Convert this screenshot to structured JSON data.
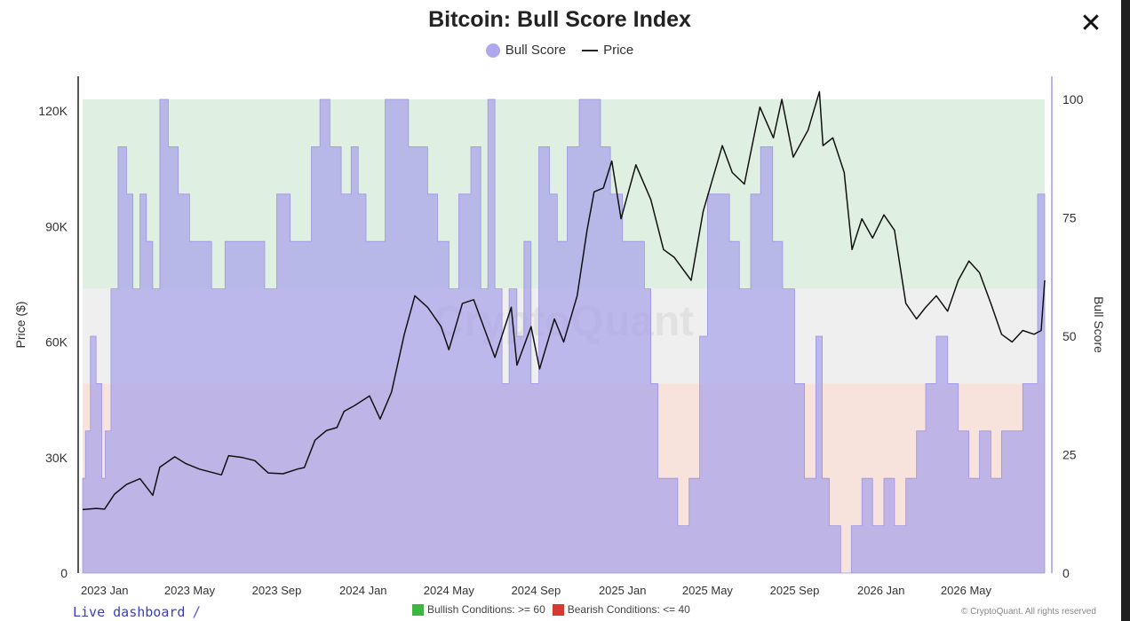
{
  "header": {
    "title": "Bitcoin: Bull Score Index",
    "close_icon": "close-icon"
  },
  "legend": {
    "bull_label": "Bull Score",
    "price_label": "Price"
  },
  "colors": {
    "bull_fill": "#a9a2ea",
    "bull_legend": "#b0a8ee",
    "price_line": "#111111",
    "bullish_zone": "#dff0e3",
    "neutral_zone": "#efefef",
    "bearish_zone": "#f7e3dc",
    "bullish_square": "#3fb63f",
    "bearish_square": "#d43a2e"
  },
  "footer": {
    "live_dashboard": "Live dashboard",
    "bullish_conditions": "Bullish Conditions: >= 60",
    "bearish_conditions": "Bearish Conditions: <= 40",
    "copyright": "© CryptoQuant. All rights reserved"
  },
  "watermark": "CryptoQuant",
  "chart_data": {
    "type": "area",
    "title": "Bitcoin: Bull Score Index",
    "ylabel_left": "Price ($)",
    "ylabel_right": "Bull Score",
    "x_tick_labels": [
      "2023 Jan",
      "2023 May",
      "2023 Sep",
      "2024 Jan",
      "2024 May",
      "2024 Sep",
      "2025 Jan",
      "2025 May",
      "2025 Sep",
      "2026 Jan",
      "2026 May"
    ],
    "y_left_ticks": [
      "0",
      "30K",
      "60K",
      "90K",
      "120K"
    ],
    "y_left_tick_values": [
      0,
      30000,
      60000,
      90000,
      120000
    ],
    "y_right_ticks": [
      "0",
      "25",
      "50",
      "75",
      "100"
    ],
    "y_right_tick_values": [
      0,
      25,
      50,
      75,
      100
    ],
    "ylim_left": [
      0,
      123000
    ],
    "ylim_right": [
      0,
      100
    ],
    "xlim": [
      "2022-12-01",
      "2026-08-20"
    ],
    "zones": [
      {
        "name": "Bullish Conditions",
        "from": 60,
        "to": 100
      },
      {
        "name": "Neutral",
        "from": 40,
        "to": 60
      },
      {
        "name": "Bearish Conditions",
        "from": 0,
        "to": 40
      }
    ],
    "legend_position": "top",
    "grid": false,
    "series": [
      {
        "name": "Bull Score",
        "axis": "right",
        "points": [
          [
            "2022-12-01",
            20
          ],
          [
            "2022-12-05",
            30
          ],
          [
            "2022-12-12",
            50
          ],
          [
            "2022-12-20",
            40
          ],
          [
            "2022-12-28",
            20
          ],
          [
            "2023-01-02",
            30
          ],
          [
            "2023-01-10",
            60
          ],
          [
            "2023-01-20",
            90
          ],
          [
            "2023-02-01",
            80
          ],
          [
            "2023-02-10",
            60
          ],
          [
            "2023-02-20",
            80
          ],
          [
            "2023-03-01",
            70
          ],
          [
            "2023-03-10",
            60
          ],
          [
            "2023-03-20",
            100
          ],
          [
            "2023-04-01",
            90
          ],
          [
            "2023-04-15",
            80
          ],
          [
            "2023-05-01",
            70
          ],
          [
            "2023-05-15",
            70
          ],
          [
            "2023-06-01",
            60
          ],
          [
            "2023-06-20",
            70
          ],
          [
            "2023-07-10",
            70
          ],
          [
            "2023-08-01",
            70
          ],
          [
            "2023-08-15",
            60
          ],
          [
            "2023-09-01",
            80
          ],
          [
            "2023-09-20",
            70
          ],
          [
            "2023-10-01",
            70
          ],
          [
            "2023-10-20",
            90
          ],
          [
            "2023-11-01",
            100
          ],
          [
            "2023-11-15",
            90
          ],
          [
            "2023-12-01",
            80
          ],
          [
            "2023-12-15",
            90
          ],
          [
            "2023-12-25",
            80
          ],
          [
            "2024-01-05",
            70
          ],
          [
            "2024-01-20",
            70
          ],
          [
            "2024-02-01",
            100
          ],
          [
            "2024-02-20",
            100
          ],
          [
            "2024-03-05",
            90
          ],
          [
            "2024-03-20",
            90
          ],
          [
            "2024-04-01",
            80
          ],
          [
            "2024-04-15",
            70
          ],
          [
            "2024-05-01",
            60
          ],
          [
            "2024-05-15",
            80
          ],
          [
            "2024-06-01",
            90
          ],
          [
            "2024-06-15",
            60
          ],
          [
            "2024-06-25",
            100
          ],
          [
            "2024-07-05",
            60
          ],
          [
            "2024-07-15",
            40
          ],
          [
            "2024-07-25",
            60
          ],
          [
            "2024-08-05",
            50
          ],
          [
            "2024-08-15",
            70
          ],
          [
            "2024-08-25",
            40
          ],
          [
            "2024-09-05",
            90
          ],
          [
            "2024-09-20",
            80
          ],
          [
            "2024-10-01",
            70
          ],
          [
            "2024-10-15",
            90
          ],
          [
            "2024-11-01",
            100
          ],
          [
            "2024-11-20",
            100
          ],
          [
            "2024-12-01",
            90
          ],
          [
            "2024-12-15",
            80
          ],
          [
            "2025-01-01",
            70
          ],
          [
            "2025-01-20",
            70
          ],
          [
            "2025-02-01",
            60
          ],
          [
            "2025-02-10",
            40
          ],
          [
            "2025-02-20",
            20
          ],
          [
            "2025-03-05",
            20
          ],
          [
            "2025-03-20",
            10
          ],
          [
            "2025-04-05",
            20
          ],
          [
            "2025-04-20",
            50
          ],
          [
            "2025-05-01",
            80
          ],
          [
            "2025-05-20",
            80
          ],
          [
            "2025-06-01",
            70
          ],
          [
            "2025-06-15",
            60
          ],
          [
            "2025-07-01",
            80
          ],
          [
            "2025-07-15",
            90
          ],
          [
            "2025-08-01",
            70
          ],
          [
            "2025-08-15",
            60
          ],
          [
            "2025-09-01",
            40
          ],
          [
            "2025-09-15",
            20
          ],
          [
            "2025-10-01",
            50
          ],
          [
            "2025-10-10",
            20
          ],
          [
            "2025-10-20",
            10
          ],
          [
            "2025-11-05",
            0
          ],
          [
            "2025-11-20",
            10
          ],
          [
            "2025-12-05",
            20
          ],
          [
            "2025-12-20",
            10
          ],
          [
            "2026-01-05",
            20
          ],
          [
            "2026-01-20",
            10
          ],
          [
            "2026-02-05",
            20
          ],
          [
            "2026-02-20",
            30
          ],
          [
            "2026-03-05",
            40
          ],
          [
            "2026-03-20",
            50
          ],
          [
            "2026-04-05",
            40
          ],
          [
            "2026-04-20",
            30
          ],
          [
            "2026-05-05",
            20
          ],
          [
            "2026-05-20",
            30
          ],
          [
            "2026-06-05",
            20
          ],
          [
            "2026-06-20",
            30
          ],
          [
            "2026-07-05",
            30
          ],
          [
            "2026-07-20",
            40
          ],
          [
            "2026-08-10",
            80
          ],
          [
            "2026-08-20",
            80
          ]
        ]
      },
      {
        "name": "Price",
        "axis": "left",
        "points": [
          [
            "2022-12-01",
            16500
          ],
          [
            "2022-12-20",
            16800
          ],
          [
            "2023-01-01",
            16600
          ],
          [
            "2023-01-15",
            20500
          ],
          [
            "2023-02-01",
            23000
          ],
          [
            "2023-02-20",
            24500
          ],
          [
            "2023-03-10",
            20200
          ],
          [
            "2023-03-20",
            27500
          ],
          [
            "2023-04-10",
            30200
          ],
          [
            "2023-04-25",
            28500
          ],
          [
            "2023-05-15",
            27000
          ],
          [
            "2023-06-15",
            25500
          ],
          [
            "2023-06-25",
            30500
          ],
          [
            "2023-07-15",
            30000
          ],
          [
            "2023-08-01",
            29200
          ],
          [
            "2023-08-20",
            26000
          ],
          [
            "2023-09-10",
            25800
          ],
          [
            "2023-09-30",
            27000
          ],
          [
            "2023-10-10",
            27400
          ],
          [
            "2023-10-25",
            34500
          ],
          [
            "2023-11-10",
            37000
          ],
          [
            "2023-11-25",
            37800
          ],
          [
            "2023-12-05",
            42000
          ],
          [
            "2023-12-20",
            43500
          ],
          [
            "2024-01-10",
            46000
          ],
          [
            "2024-01-25",
            40000
          ],
          [
            "2024-02-10",
            47000
          ],
          [
            "2024-02-28",
            62000
          ],
          [
            "2024-03-14",
            72000
          ],
          [
            "2024-04-01",
            69000
          ],
          [
            "2024-04-20",
            64000
          ],
          [
            "2024-05-01",
            58000
          ],
          [
            "2024-05-20",
            70000
          ],
          [
            "2024-06-05",
            71000
          ],
          [
            "2024-06-25",
            61000
          ],
          [
            "2024-07-05",
            56000
          ],
          [
            "2024-07-28",
            69000
          ],
          [
            "2024-08-05",
            54000
          ],
          [
            "2024-08-25",
            64000
          ],
          [
            "2024-09-06",
            53000
          ],
          [
            "2024-09-27",
            66000
          ],
          [
            "2024-10-10",
            60000
          ],
          [
            "2024-10-29",
            72000
          ],
          [
            "2024-11-12",
            89000
          ],
          [
            "2024-11-22",
            99000
          ],
          [
            "2024-12-05",
            100000
          ],
          [
            "2024-12-17",
            107000
          ],
          [
            "2024-12-30",
            92000
          ],
          [
            "2025-01-20",
            106000
          ],
          [
            "2025-02-10",
            97000
          ],
          [
            "2025-02-28",
            84000
          ],
          [
            "2025-03-15",
            82000
          ],
          [
            "2025-04-08",
            76000
          ],
          [
            "2025-04-25",
            94000
          ],
          [
            "2025-05-22",
            111000
          ],
          [
            "2025-06-05",
            104000
          ],
          [
            "2025-06-22",
            101000
          ],
          [
            "2025-07-14",
            121000
          ],
          [
            "2025-08-02",
            113000
          ],
          [
            "2025-08-14",
            123000
          ],
          [
            "2025-08-30",
            108000
          ],
          [
            "2025-09-20",
            115000
          ],
          [
            "2025-10-06",
            125000
          ],
          [
            "2025-10-11",
            111000
          ],
          [
            "2025-10-25",
            113000
          ],
          [
            "2025-11-10",
            104000
          ],
          [
            "2025-11-21",
            84000
          ],
          [
            "2025-12-05",
            92000
          ],
          [
            "2025-12-20",
            87000
          ],
          [
            "2026-01-05",
            93000
          ],
          [
            "2026-01-20",
            89000
          ],
          [
            "2026-02-05",
            70000
          ],
          [
            "2026-02-20",
            66000
          ],
          [
            "2026-03-05",
            69000
          ],
          [
            "2026-03-20",
            72000
          ],
          [
            "2026-04-05",
            68000
          ],
          [
            "2026-04-20",
            76000
          ],
          [
            "2026-05-05",
            81000
          ],
          [
            "2026-05-20",
            78000
          ],
          [
            "2026-06-05",
            70000
          ],
          [
            "2026-06-20",
            62000
          ],
          [
            "2026-07-05",
            60000
          ],
          [
            "2026-07-20",
            63000
          ],
          [
            "2026-08-05",
            62000
          ],
          [
            "2026-08-15",
            63000
          ],
          [
            "2026-08-20",
            76000
          ]
        ]
      }
    ]
  }
}
